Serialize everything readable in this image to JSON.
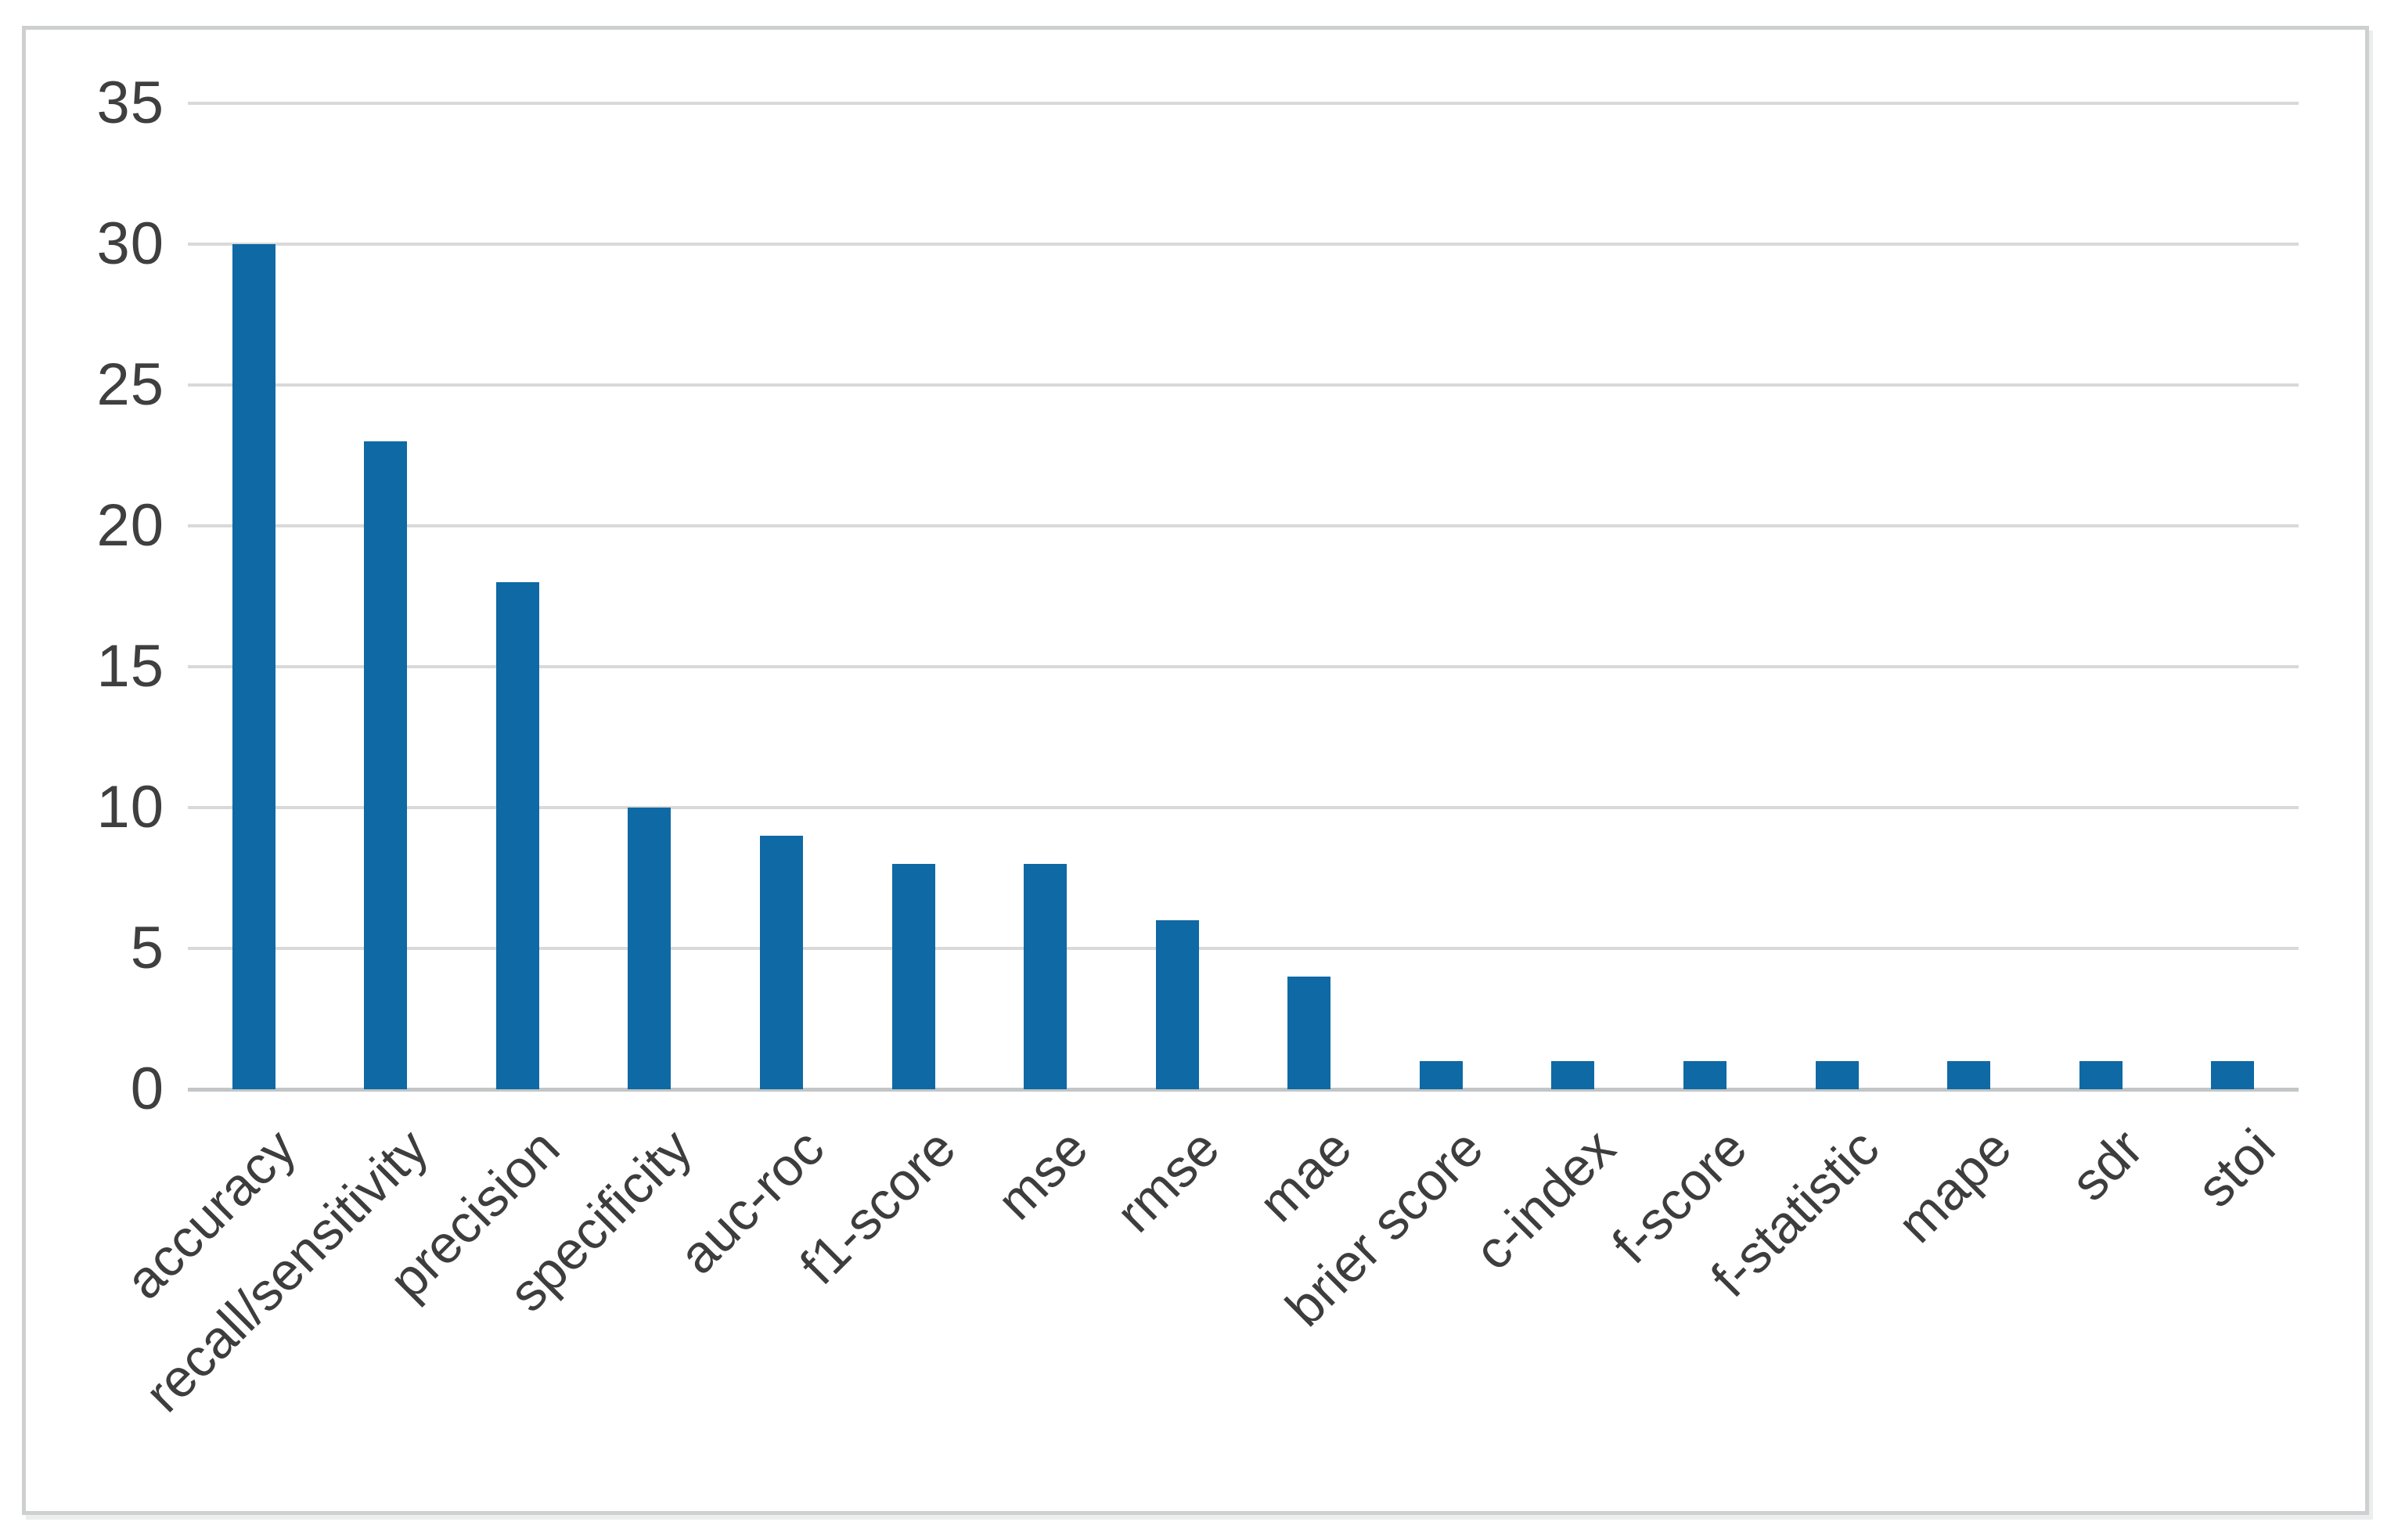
{
  "figure": {
    "background_color": "#ffffff",
    "frame_border_color": "#cdcfd0"
  },
  "chart_data": {
    "type": "bar",
    "title": "",
    "xlabel": "",
    "ylabel": "",
    "categories": [
      "accuracy",
      "recall/sensitivity",
      "precision",
      "specificity",
      "auc-roc",
      "f1-score",
      "mse",
      "rmse",
      "mae",
      "brier score",
      "c-index",
      "f-score",
      "f-statistic",
      "mape",
      "sdr",
      "stoi"
    ],
    "values": [
      30,
      23,
      18,
      10,
      9,
      8,
      8,
      6,
      4,
      1,
      1,
      1,
      1,
      1,
      1,
      1
    ],
    "ylim": [
      0,
      35
    ],
    "ytick_step": 5,
    "ytick_labels": [
      "0",
      "5",
      "10",
      "15",
      "20",
      "25",
      "30",
      "35"
    ],
    "grid": "horizontal",
    "legend": "none",
    "bar_color": "#0f69a4",
    "gridline_color": "#d9d9d9",
    "axis_line_color": "#c3c6c7",
    "tick_label_color": "#3f3f3f",
    "x_label_rotation_deg": -45
  }
}
